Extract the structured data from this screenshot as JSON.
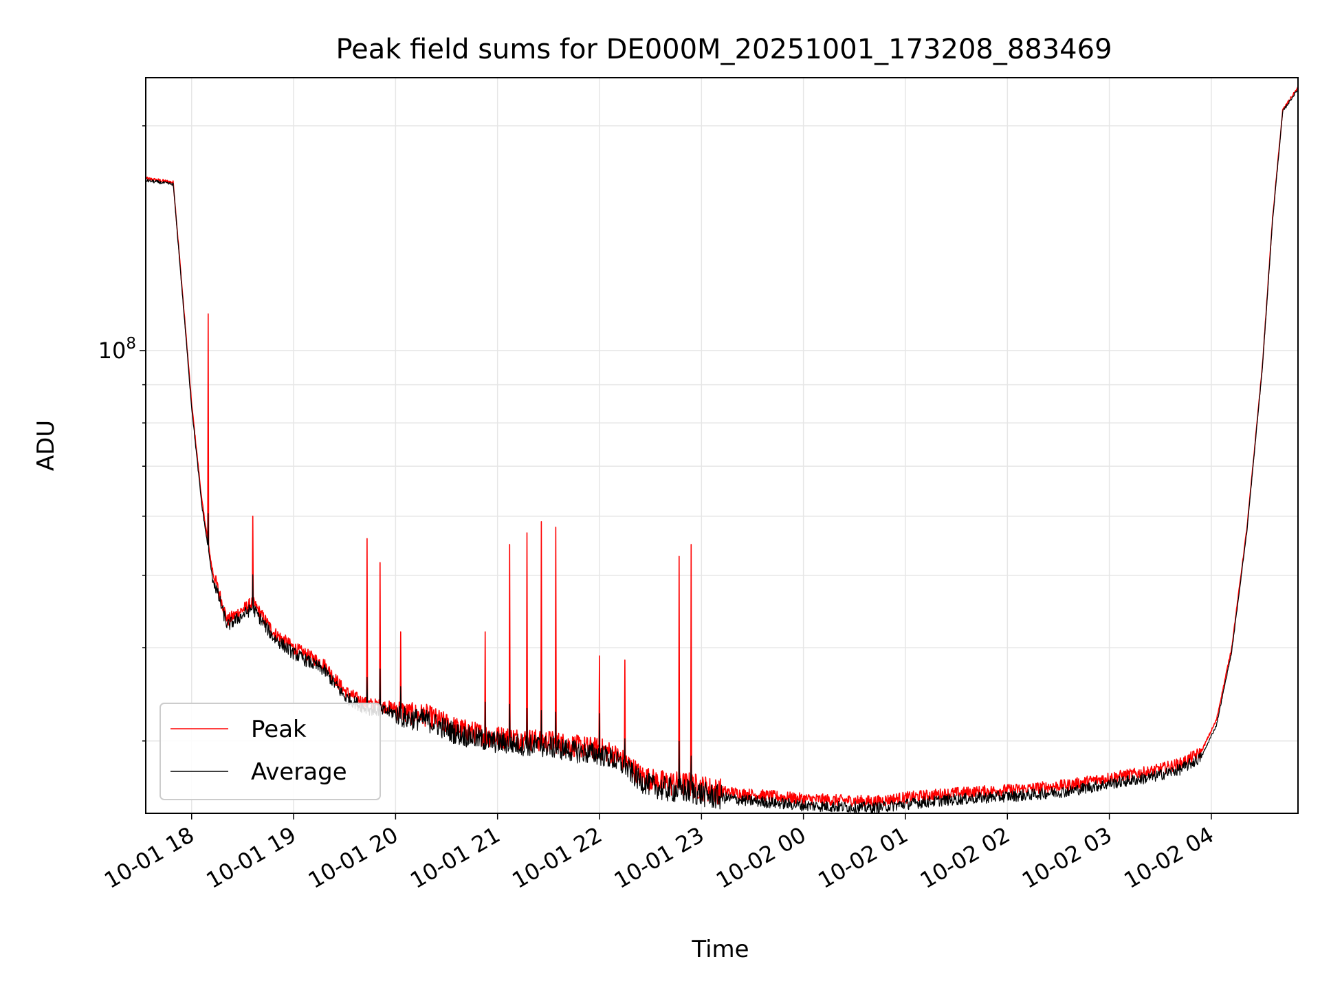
{
  "chart_data": {
    "type": "line",
    "title": "Peak field sums for DE000M_20251001_173208_883469",
    "xlabel": "Time",
    "ylabel": "ADU",
    "y_scale": "log",
    "ylim": [
      24000000,
      232000000
    ],
    "x_unit": "hours since 10-01 17:00",
    "xlim": [
      17.55,
      28.85
    ],
    "x_ticks": [
      {
        "value": 18,
        "label": "10-01 18"
      },
      {
        "value": 19,
        "label": "10-01 19"
      },
      {
        "value": 20,
        "label": "10-01 20"
      },
      {
        "value": 21,
        "label": "10-01 21"
      },
      {
        "value": 22,
        "label": "10-01 22"
      },
      {
        "value": 23,
        "label": "10-01 23"
      },
      {
        "value": 24,
        "label": "10-02 00"
      },
      {
        "value": 25,
        "label": "10-02 01"
      },
      {
        "value": 26,
        "label": "10-02 02"
      },
      {
        "value": 27,
        "label": "10-02 03"
      },
      {
        "value": 28,
        "label": "10-02 04"
      }
    ],
    "y_ticks": [
      {
        "value": 100000000,
        "base": "10",
        "exp": "8"
      }
    ],
    "grid": true,
    "legend_position": "bottom-left",
    "series": [
      {
        "name": "Peak",
        "color": "#ff0000",
        "x": [
          17.55,
          17.82,
          18.0,
          18.1,
          18.2,
          18.35,
          18.6,
          18.8,
          19.0,
          19.3,
          19.5,
          19.7,
          20.0,
          20.1,
          20.3,
          20.6,
          20.9,
          21.2,
          21.5,
          21.8,
          22.0,
          22.1,
          22.25,
          22.4,
          22.6,
          22.9,
          23.1,
          23.4,
          23.7,
          24.0,
          24.3,
          24.7,
          25.0,
          25.4,
          25.8,
          26.2,
          26.6,
          27.0,
          27.4,
          27.7,
          27.9,
          28.05,
          28.2,
          28.35,
          28.5,
          28.6,
          28.7,
          28.85
        ],
        "y": [
          170000000,
          168000000,
          85000000,
          63000000,
          51000000,
          43500000,
          46000000,
          42000000,
          40000000,
          38000000,
          35000000,
          33700000,
          33200000,
          32700000,
          32500000,
          31200000,
          30500000,
          30200000,
          30000000,
          29500000,
          29300000,
          29000000,
          28200000,
          27000000,
          26400000,
          26200000,
          25800000,
          25500000,
          25300000,
          25100000,
          25000000,
          24900000,
          25200000,
          25500000,
          25700000,
          25900000,
          26200000,
          26800000,
          27300000,
          28000000,
          29000000,
          32000000,
          40000000,
          58000000,
          95000000,
          150000000,
          210000000,
          225000000
        ]
      },
      {
        "name": "Average",
        "color": "#000000",
        "x": [
          17.55,
          17.82,
          18.0,
          18.1,
          18.2,
          18.35,
          18.6,
          18.8,
          19.0,
          19.3,
          19.5,
          19.7,
          20.0,
          20.1,
          20.3,
          20.6,
          20.9,
          21.2,
          21.5,
          21.8,
          22.0,
          22.1,
          22.25,
          22.4,
          22.6,
          22.9,
          23.1,
          23.4,
          23.7,
          24.0,
          24.3,
          24.7,
          25.0,
          25.4,
          25.8,
          26.2,
          26.6,
          27.0,
          27.4,
          27.7,
          27.9,
          28.05,
          28.2,
          28.35,
          28.5,
          28.6,
          28.7,
          28.85
        ],
        "y": [
          169000000,
          167000000,
          84000000,
          62000000,
          50000000,
          42800000,
          45200000,
          41300000,
          39300000,
          37300000,
          34400000,
          33200000,
          32700000,
          32200000,
          32000000,
          30700000,
          30000000,
          29700000,
          29500000,
          29000000,
          28800000,
          28500000,
          27700000,
          26500000,
          25900000,
          25700000,
          25300000,
          25000000,
          24800000,
          24600000,
          24500000,
          24400000,
          24700000,
          25000000,
          25200000,
          25400000,
          25700000,
          26300000,
          26800000,
          27500000,
          28500000,
          31500000,
          39500000,
          57500000,
          94500000,
          149000000,
          209000000,
          224000000
        ]
      }
    ],
    "spikes": [
      {
        "x": 18.16,
        "y": 112000000
      },
      {
        "x": 18.6,
        "y": 60000000
      },
      {
        "x": 19.72,
        "y": 56000000
      },
      {
        "x": 19.85,
        "y": 52000000
      },
      {
        "x": 20.05,
        "y": 42000000
      },
      {
        "x": 20.88,
        "y": 42000000
      },
      {
        "x": 21.12,
        "y": 55000000
      },
      {
        "x": 21.29,
        "y": 57000000
      },
      {
        "x": 21.43,
        "y": 59000000
      },
      {
        "x": 21.57,
        "y": 58000000
      },
      {
        "x": 22.0,
        "y": 39000000
      },
      {
        "x": 22.25,
        "y": 38500000
      },
      {
        "x": 22.78,
        "y": 53000000
      },
      {
        "x": 22.9,
        "y": 55000000
      }
    ]
  }
}
